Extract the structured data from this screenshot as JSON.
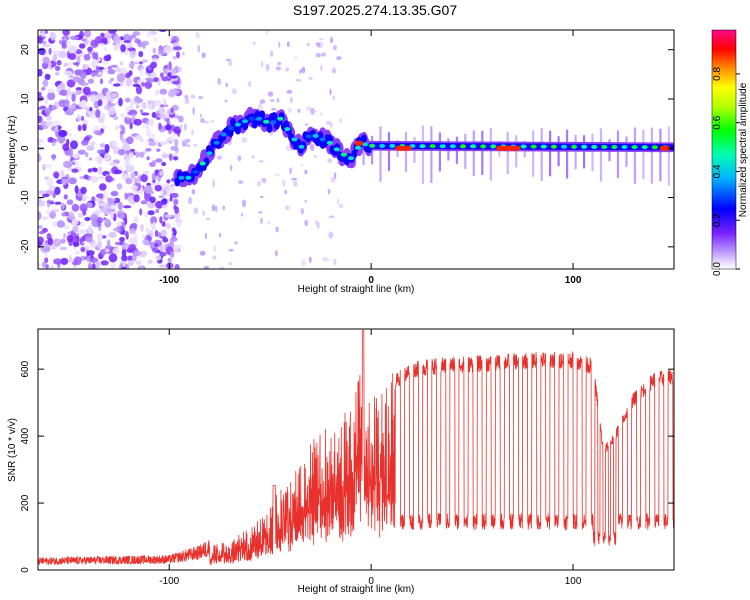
{
  "title": "S197.2025.274.13.35.G07",
  "chart_data": [
    {
      "type": "heatmap",
      "xlabel": "Height of straight line (km)",
      "ylabel": "Frequency (Hz)",
      "xlim": [
        -165,
        150
      ],
      "ylim": [
        -24.5,
        24
      ],
      "xticks": [
        -100,
        0,
        100
      ],
      "yticks": [
        -20,
        -10,
        0,
        10,
        20
      ],
      "colorbar": {
        "label": "Normalized spectral amplitude",
        "range": [
          0,
          0.98
        ],
        "ticks": [
          0.0,
          0.2,
          0.4,
          0.6,
          0.8
        ]
      },
      "ridge": {
        "description_points_x": [
          -96,
          -90,
          -85,
          -80,
          -75,
          -70,
          -65,
          -60,
          -55,
          -50,
          -45,
          -40,
          -35,
          -30,
          -25,
          -20,
          -15,
          -10,
          -5,
          0,
          150
        ],
        "description_points_y": [
          -6,
          -6,
          -4,
          -1,
          2,
          4,
          5,
          6,
          6,
          5,
          6,
          3,
          0,
          3,
          2,
          1,
          -1,
          -2,
          1,
          0.5,
          0.2
        ]
      }
    },
    {
      "type": "line",
      "xlabel": "Height of straight line (km)",
      "ylabel": "SNR (10 * v/v)",
      "xlim": [
        -165,
        150
      ],
      "ylim": [
        0,
        720
      ],
      "xticks": [
        -100,
        0,
        100
      ],
      "yticks": [
        0,
        200,
        400,
        600
      ],
      "color": "#e8302c",
      "envelope": {
        "x": [
          -165,
          -130,
          -100,
          -85,
          -75,
          -60,
          -50,
          -40,
          -30,
          -20,
          -10,
          -5,
          0,
          5,
          10,
          15,
          20,
          30,
          40,
          60,
          80,
          100,
          110,
          115,
          120,
          130,
          140,
          150
        ],
        "y": [
          25,
          28,
          30,
          50,
          80,
          120,
          200,
          260,
          380,
          430,
          470,
          600,
          520,
          500,
          560,
          590,
          610,
          620,
          625,
          630,
          640,
          640,
          620,
          360,
          400,
          520,
          580,
          590
        ]
      }
    }
  ]
}
